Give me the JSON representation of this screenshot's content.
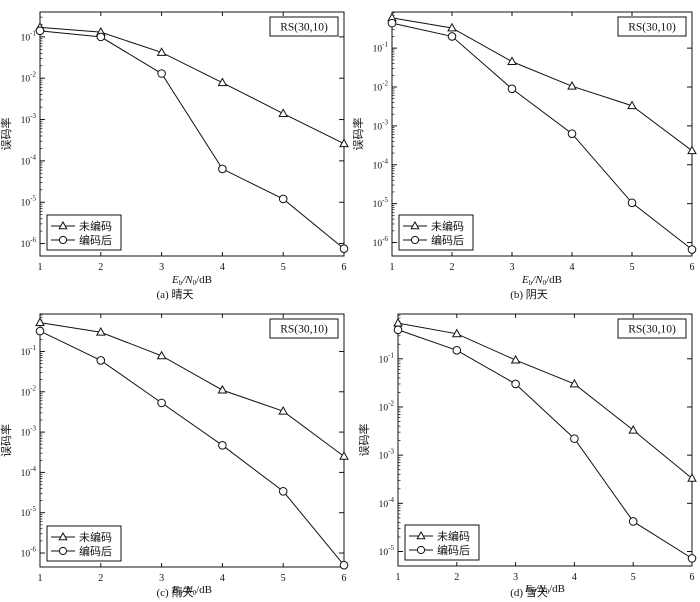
{
  "chart_data": [
    {
      "type": "line",
      "badge": "RS(30,10)",
      "caption": "(a)  晴天",
      "xlabel_main": "E",
      "xlabel_sub1": "b",
      "xlabel_mid": "/N",
      "xlabel_sub2": "0",
      "xlabel_unit": "/dB",
      "ylabel": "误码率",
      "x": [
        1,
        2,
        3,
        4,
        5,
        6
      ],
      "xlim": [
        1,
        6
      ],
      "yscale": "log",
      "ylim": [
        5e-07,
        0.4
      ],
      "yticks": [
        {
          "exp": "-1",
          "value": 0.1
        },
        {
          "exp": "-2",
          "value": 0.01
        },
        {
          "exp": "-3",
          "value": 0.001
        },
        {
          "exp": "-4",
          "value": 0.0001
        },
        {
          "exp": "-5",
          "value": 1e-05
        },
        {
          "exp": "-6",
          "value": 1e-06
        }
      ],
      "xticks": [
        "1",
        "2",
        "3",
        "4",
        "5",
        "6"
      ],
      "legend_position": "bottom-left",
      "series": [
        {
          "name": "未编码",
          "marker": "triangle",
          "values": [
            0.17,
            0.13,
            0.042,
            0.0078,
            0.0014,
            0.00026
          ]
        },
        {
          "name": "编码后",
          "marker": "circle",
          "values": [
            0.14,
            0.1,
            0.013,
            6.4e-05,
            1.2e-05,
            7.5e-07
          ]
        }
      ]
    },
    {
      "type": "line",
      "badge": "RS(30,10)",
      "caption": "(b)  阴天",
      "xlabel_main": "E",
      "xlabel_sub1": "b",
      "xlabel_mid": "/N",
      "xlabel_sub2": "0",
      "xlabel_unit": "/dB",
      "ylabel": "误码率",
      "x": [
        1,
        2,
        3,
        4,
        5,
        6
      ],
      "xlim": [
        1,
        6
      ],
      "yscale": "log",
      "ylim": [
        4.5e-07,
        0.85
      ],
      "yticks": [
        {
          "exp": "-1",
          "value": 0.1
        },
        {
          "exp": "-2",
          "value": 0.01
        },
        {
          "exp": "-3",
          "value": 0.001
        },
        {
          "exp": "-4",
          "value": 0.0001
        },
        {
          "exp": "-5",
          "value": 1e-05
        },
        {
          "exp": "-6",
          "value": 1e-06
        }
      ],
      "xticks": [
        "1",
        "2",
        "3",
        "4",
        "5",
        "6"
      ],
      "legend_position": "bottom-left",
      "series": [
        {
          "name": "未编码",
          "marker": "triangle",
          "values": [
            0.6,
            0.33,
            0.045,
            0.0105,
            0.0033,
            0.00023
          ]
        },
        {
          "name": "编码后",
          "marker": "circle",
          "values": [
            0.44,
            0.2,
            0.009,
            0.00063,
            1.05e-05,
            6.6e-07
          ]
        }
      ]
    },
    {
      "type": "line",
      "badge": "RS(30,10)",
      "caption": "(c)  雨天",
      "xlabel_main": "E",
      "xlabel_sub1": "b",
      "xlabel_mid": "/N",
      "xlabel_sub2": "0",
      "xlabel_unit": "/dB",
      "ylabel": "误码率",
      "x": [
        1,
        2,
        3,
        4,
        5,
        6
      ],
      "xlim": [
        1,
        6
      ],
      "yscale": "log",
      "ylim": [
        4.5e-07,
        0.85
      ],
      "yticks": [
        {
          "exp": "-1",
          "value": 0.1
        },
        {
          "exp": "-2",
          "value": 0.01
        },
        {
          "exp": "-3",
          "value": 0.001
        },
        {
          "exp": "-4",
          "value": 0.0001
        },
        {
          "exp": "-5",
          "value": 1e-05
        },
        {
          "exp": "-6",
          "value": 1e-06
        }
      ],
      "xticks": [
        "1",
        "2",
        "3",
        "4",
        "5",
        "6"
      ],
      "legend_position": "bottom-left",
      "series": [
        {
          "name": "未编码",
          "marker": "triangle",
          "values": [
            0.52,
            0.3,
            0.078,
            0.011,
            0.0033,
            0.00025
          ]
        },
        {
          "name": "编码后",
          "marker": "circle",
          "values": [
            0.32,
            0.06,
            0.0053,
            0.00047,
            3.4e-05,
            5e-07
          ]
        }
      ]
    },
    {
      "type": "line",
      "badge": "RS(30,10)",
      "caption": "(d)  雪天",
      "xlabel_main": "E",
      "xlabel_sub1": "b",
      "xlabel_mid": "/N",
      "xlabel_sub2": "0",
      "xlabel_unit": "/dB",
      "ylabel": "误码率",
      "x": [
        1,
        2,
        3,
        4,
        5,
        6
      ],
      "xlim": [
        1,
        6
      ],
      "yscale": "log",
      "ylim": [
        5e-06,
        0.85
      ],
      "yticks": [
        {
          "exp": "-1",
          "value": 0.1
        },
        {
          "exp": "-2",
          "value": 0.01
        },
        {
          "exp": "-3",
          "value": 0.001
        },
        {
          "exp": "-4",
          "value": 0.0001
        },
        {
          "exp": "-5",
          "value": 1e-05
        }
      ],
      "xticks": [
        "1",
        "2",
        "3",
        "4",
        "5",
        "6"
      ],
      "legend_position": "bottom-left",
      "series": [
        {
          "name": "未编码",
          "marker": "triangle",
          "values": [
            0.55,
            0.33,
            0.094,
            0.03,
            0.0033,
            0.00033
          ]
        },
        {
          "name": "编码后",
          "marker": "circle",
          "values": [
            0.4,
            0.15,
            0.03,
            0.0022,
            4.2e-05,
            7.2e-06
          ]
        }
      ]
    }
  ]
}
